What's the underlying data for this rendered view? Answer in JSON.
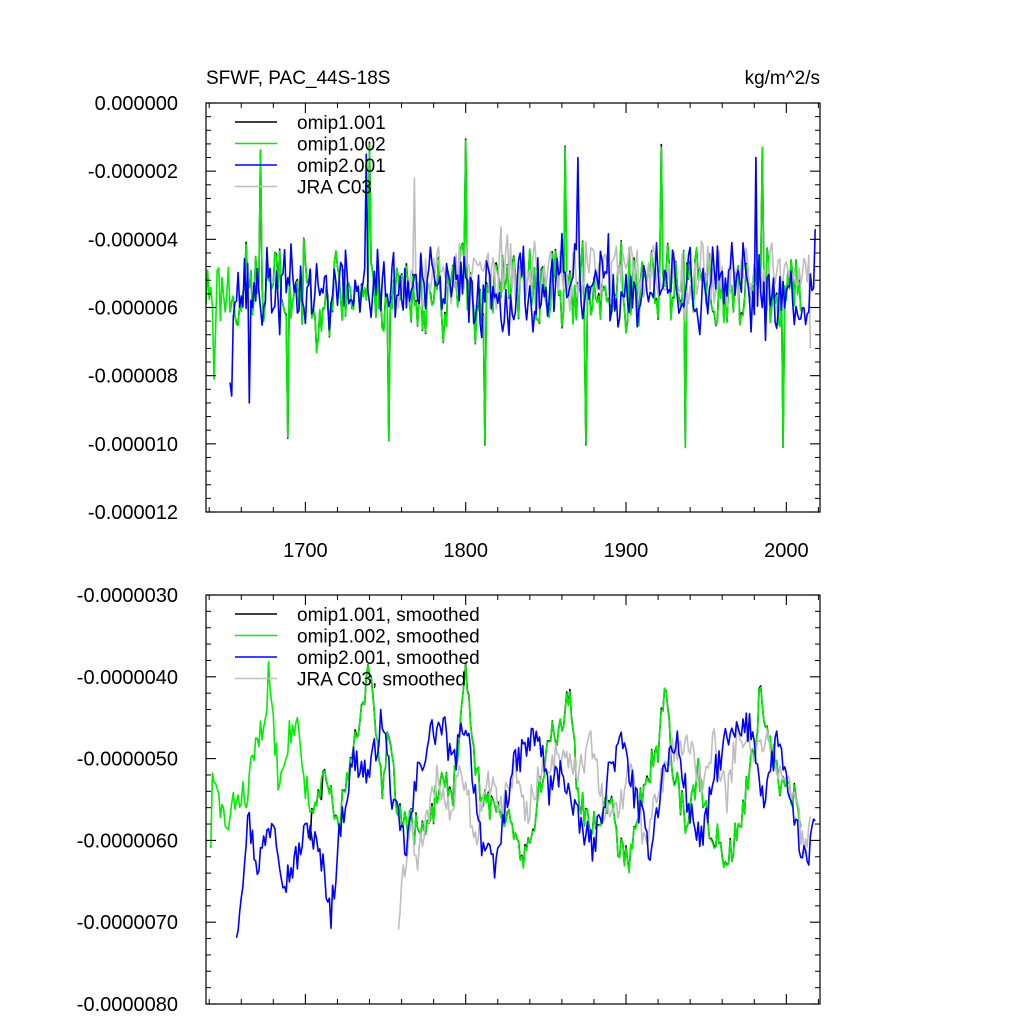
{
  "chart_data": [
    {
      "type": "line",
      "title": "SFWF, PAC_44S-18S",
      "units": "kg/m^2/s",
      "xlim": [
        1638,
        2021
      ],
      "ylim": [
        -1.2e-05,
        0.0
      ],
      "x_ticks": [
        1700,
        1800,
        1900,
        2000
      ],
      "x_tick_labels": [
        "1700",
        "1800",
        "1900",
        "2000"
      ],
      "y_ticks": [
        0.0,
        -2e-06,
        -4e-06,
        -6e-06,
        -8e-06,
        -1e-05,
        -1.2e-05
      ],
      "y_tick_labels": [
        "0.000000",
        "-0.000002",
        "-0.000004",
        "-0.000006",
        "-0.000008",
        "-0.000010",
        "-0.000012"
      ],
      "legend": [
        "omip1.001",
        "omip1.002",
        "omip2.001",
        "JRA C03"
      ],
      "series": [
        {
          "name": "omip1.001",
          "color": "#000000",
          "start": 1653,
          "end": 2009,
          "base": -5.5e-06,
          "amp": 1.6e-06,
          "seed": 11,
          "track": "omip1.002",
          "track_offset": 1.2e-07
        },
        {
          "name": "omip1.002",
          "color": "#00ee00",
          "start": 1638,
          "end": 2009,
          "base": -5.5e-06,
          "amp": 1.8e-06,
          "seed": 23,
          "anchors": [
            [
              1643,
              -8.1e-06
            ],
            [
              1672,
              -1.4e-06
            ],
            [
              1689,
              -9.8e-06
            ],
            [
              1740,
              -1.2e-06
            ],
            [
              1752,
              -9.9e-06
            ],
            [
              1800,
              -1.1e-06
            ],
            [
              1812,
              -1e-05
            ],
            [
              1862,
              -1.3e-06
            ],
            [
              1875,
              -1e-05
            ],
            [
              1922,
              -1.3e-06
            ],
            [
              1937,
              -1.01e-05
            ],
            [
              1985,
              -1.3e-06
            ],
            [
              1998,
              -1.01e-05
            ]
          ]
        },
        {
          "name": "omip2.001",
          "color": "#0000ff",
          "start": 1653,
          "end": 2018,
          "base": -5.5e-06,
          "amp": 1.7e-06,
          "seed": 37,
          "anchors": [
            [
              1653,
              -8.2e-06
            ],
            [
              1654,
              -8.6e-06
            ],
            [
              1665,
              -8.8e-06
            ],
            [
              1738,
              -1.5e-06
            ],
            [
              1870,
              -1.6e-06
            ],
            [
              1981,
              -1.6e-06
            ],
            [
              2016,
              -5.5e-06
            ],
            [
              2018,
              -3.7e-06
            ]
          ]
        },
        {
          "name": "JRA C03",
          "color": "#bebebe",
          "start": 1758,
          "end": 2015,
          "base": -5e-06,
          "amp": 1.4e-06,
          "seed": 53,
          "anchors": [
            [
              1768,
              -2.2e-06
            ],
            [
              1981,
              -1.6e-06
            ],
            [
              2015,
              -7.2e-06
            ]
          ]
        }
      ]
    },
    {
      "type": "line",
      "title": "",
      "xlim": [
        1638,
        2021
      ],
      "ylim": [
        -8e-06,
        -3e-06
      ],
      "x_ticks": [
        1700,
        1800,
        1900,
        2000
      ],
      "y_ticks": [
        -3e-06,
        -4e-06,
        -5e-06,
        -6e-06,
        -7e-06,
        -8e-06
      ],
      "y_tick_labels": [
        "-0.0000030",
        "-0.0000040",
        "-0.0000050",
        "-0.0000060",
        "-0.0000070",
        "-0.0000080"
      ],
      "legend": [
        "omip1.001, smoothed",
        "omip1.002, smoothed",
        "omip2.001, smoothed",
        "JRA C03, smoothed"
      ],
      "series": [
        {
          "name": "omip1.001, smoothed",
          "color": "#000000",
          "start": 1703,
          "end": 2009,
          "seed": 71,
          "track": "omip1.002, smoothed",
          "track_offset": 4e-08,
          "anchors": [
            [
              1703,
              -6e-06
            ],
            [
              1710,
              -5.5e-06
            ]
          ]
        },
        {
          "name": "omip1.002, smoothed",
          "color": "#00ee00",
          "start": 1641,
          "end": 2009,
          "seed": 83,
          "anchors": [
            [
              1641,
              -6e-06
            ],
            [
              1642,
              -5.3e-06
            ],
            [
              1646,
              -5.5e-06
            ],
            [
              1652,
              -5.9e-06
            ],
            [
              1656,
              -5.5e-06
            ],
            [
              1664,
              -5.4e-06
            ],
            [
              1670,
              -4.7e-06
            ],
            [
              1675,
              -4.7e-06
            ],
            [
              1677,
              -3.9e-06
            ],
            [
              1683,
              -5.2e-06
            ],
            [
              1688,
              -4.8e-06
            ],
            [
              1694,
              -4.5e-06
            ],
            [
              1700,
              -5.3e-06
            ],
            [
              1706,
              -5.7e-06
            ],
            [
              1712,
              -5.2e-06
            ],
            [
              1720,
              -5.8e-06
            ],
            [
              1728,
              -5.1e-06
            ],
            [
              1734,
              -4.6e-06
            ],
            [
              1740,
              -3.9e-06
            ],
            [
              1744,
              -4.7e-06
            ],
            [
              1748,
              -5.4e-06
            ],
            [
              1752,
              -4.6e-06
            ],
            [
              1758,
              -5.7e-06
            ],
            [
              1766,
              -5.8e-06
            ],
            [
              1775,
              -6e-06
            ],
            [
              1785,
              -5.2e-06
            ],
            [
              1792,
              -5.4e-06
            ],
            [
              1800,
              -4e-06
            ],
            [
              1806,
              -5.2e-06
            ],
            [
              1815,
              -5.6e-06
            ],
            [
              1828,
              -5.7e-06
            ],
            [
              1836,
              -6.2e-06
            ],
            [
              1843,
              -5.8e-06
            ],
            [
              1852,
              -4.7e-06
            ],
            [
              1860,
              -4.6e-06
            ],
            [
              1865,
              -4.1e-06
            ],
            [
              1870,
              -5.5e-06
            ],
            [
              1878,
              -5.8e-06
            ],
            [
              1890,
              -5.5e-06
            ],
            [
              1896,
              -6.1e-06
            ],
            [
              1902,
              -6.2e-06
            ],
            [
              1910,
              -5.4e-06
            ],
            [
              1920,
              -4.9e-06
            ],
            [
              1924,
              -4.1e-06
            ],
            [
              1930,
              -5.2e-06
            ],
            [
              1938,
              -5.8e-06
            ],
            [
              1945,
              -5.2e-06
            ],
            [
              1952,
              -5.8e-06
            ],
            [
              1962,
              -6.2e-06
            ],
            [
              1970,
              -5.9e-06
            ],
            [
              1978,
              -5.1e-06
            ],
            [
              1984,
              -4.2e-06
            ],
            [
              1990,
              -4.9e-06
            ],
            [
              1997,
              -5.3e-06
            ],
            [
              2005,
              -5.5e-06
            ],
            [
              2009,
              -5.9e-06
            ]
          ]
        },
        {
          "name": "omip2.001, smoothed",
          "color": "#0000ff",
          "start": 1657,
          "end": 2018,
          "seed": 97,
          "anchors": [
            [
              1657,
              -7.1e-06
            ],
            [
              1660,
              -6.6e-06
            ],
            [
              1664,
              -5.7e-06
            ],
            [
              1670,
              -6.3e-06
            ],
            [
              1680,
              -5.7e-06
            ],
            [
              1687,
              -6.5e-06
            ],
            [
              1695,
              -6.2e-06
            ],
            [
              1702,
              -5.8e-06
            ],
            [
              1712,
              -6.4e-06
            ],
            [
              1716,
              -6.9e-06
            ],
            [
              1722,
              -5.8e-06
            ],
            [
              1730,
              -5e-06
            ],
            [
              1740,
              -5.2e-06
            ],
            [
              1748,
              -4.5e-06
            ],
            [
              1755,
              -5.6e-06
            ],
            [
              1763,
              -6.1e-06
            ],
            [
              1770,
              -5.2e-06
            ],
            [
              1778,
              -4.7e-06
            ],
            [
              1786,
              -4.6e-06
            ],
            [
              1792,
              -5.1e-06
            ],
            [
              1800,
              -4.5e-06
            ],
            [
              1810,
              -6e-06
            ],
            [
              1818,
              -6.4e-06
            ],
            [
              1828,
              -5.2e-06
            ],
            [
              1836,
              -4.9e-06
            ],
            [
              1845,
              -4.7e-06
            ],
            [
              1852,
              -5.4e-06
            ],
            [
              1860,
              -5.1e-06
            ],
            [
              1868,
              -5.7e-06
            ],
            [
              1880,
              -6.1e-06
            ],
            [
              1890,
              -5.1e-06
            ],
            [
              1898,
              -4.8e-06
            ],
            [
              1906,
              -5.5e-06
            ],
            [
              1915,
              -6.1e-06
            ],
            [
              1924,
              -5.1e-06
            ],
            [
              1932,
              -4.8e-06
            ],
            [
              1940,
              -5.7e-06
            ],
            [
              1948,
              -6e-06
            ],
            [
              1955,
              -5.2e-06
            ],
            [
              1962,
              -4.8e-06
            ],
            [
              1970,
              -4.7e-06
            ],
            [
              1978,
              -4.6e-06
            ],
            [
              1986,
              -5.5e-06
            ],
            [
              1995,
              -4.7e-06
            ],
            [
              2003,
              -5.7e-06
            ],
            [
              2010,
              -6.1e-06
            ],
            [
              2013,
              -6.4e-06
            ],
            [
              2016,
              -5.8e-06
            ]
          ]
        },
        {
          "name": "JRA C03, smoothed",
          "color": "#bebebe",
          "start": 1758,
          "end": 2015,
          "seed": 109,
          "anchors": [
            [
              1758,
              -7e-06
            ],
            [
              1760,
              -6.5e-06
            ],
            [
              1765,
              -5.9e-06
            ],
            [
              1770,
              -6.2e-06
            ],
            [
              1776,
              -5.8e-06
            ],
            [
              1782,
              -5.2e-06
            ],
            [
              1790,
              -5.7e-06
            ],
            [
              1798,
              -5.1e-06
            ],
            [
              1806,
              -6e-06
            ],
            [
              1814,
              -5.2e-06
            ],
            [
              1822,
              -5.6e-06
            ],
            [
              1830,
              -5.1e-06
            ],
            [
              1838,
              -5.7e-06
            ],
            [
              1846,
              -5.2e-06
            ],
            [
              1855,
              -5e-06
            ],
            [
              1862,
              -4.9e-06
            ],
            [
              1870,
              -5.2e-06
            ],
            [
              1878,
              -4.8e-06
            ],
            [
              1886,
              -5.6e-06
            ],
            [
              1895,
              -5.7e-06
            ],
            [
              1903,
              -5.1e-06
            ],
            [
              1911,
              -6e-06
            ],
            [
              1920,
              -5.4e-06
            ],
            [
              1930,
              -4.9e-06
            ],
            [
              1940,
              -4.8e-06
            ],
            [
              1947,
              -5.3e-06
            ],
            [
              1955,
              -4.8e-06
            ],
            [
              1963,
              -5.5e-06
            ],
            [
              1970,
              -4.6e-06
            ],
            [
              1980,
              -4.9e-06
            ],
            [
              1990,
              -4.8e-06
            ],
            [
              2000,
              -5.3e-06
            ],
            [
              2008,
              -5.8e-06
            ],
            [
              2013,
              -6.1e-06
            ],
            [
              2015,
              -5.9e-06
            ]
          ]
        }
      ]
    }
  ]
}
